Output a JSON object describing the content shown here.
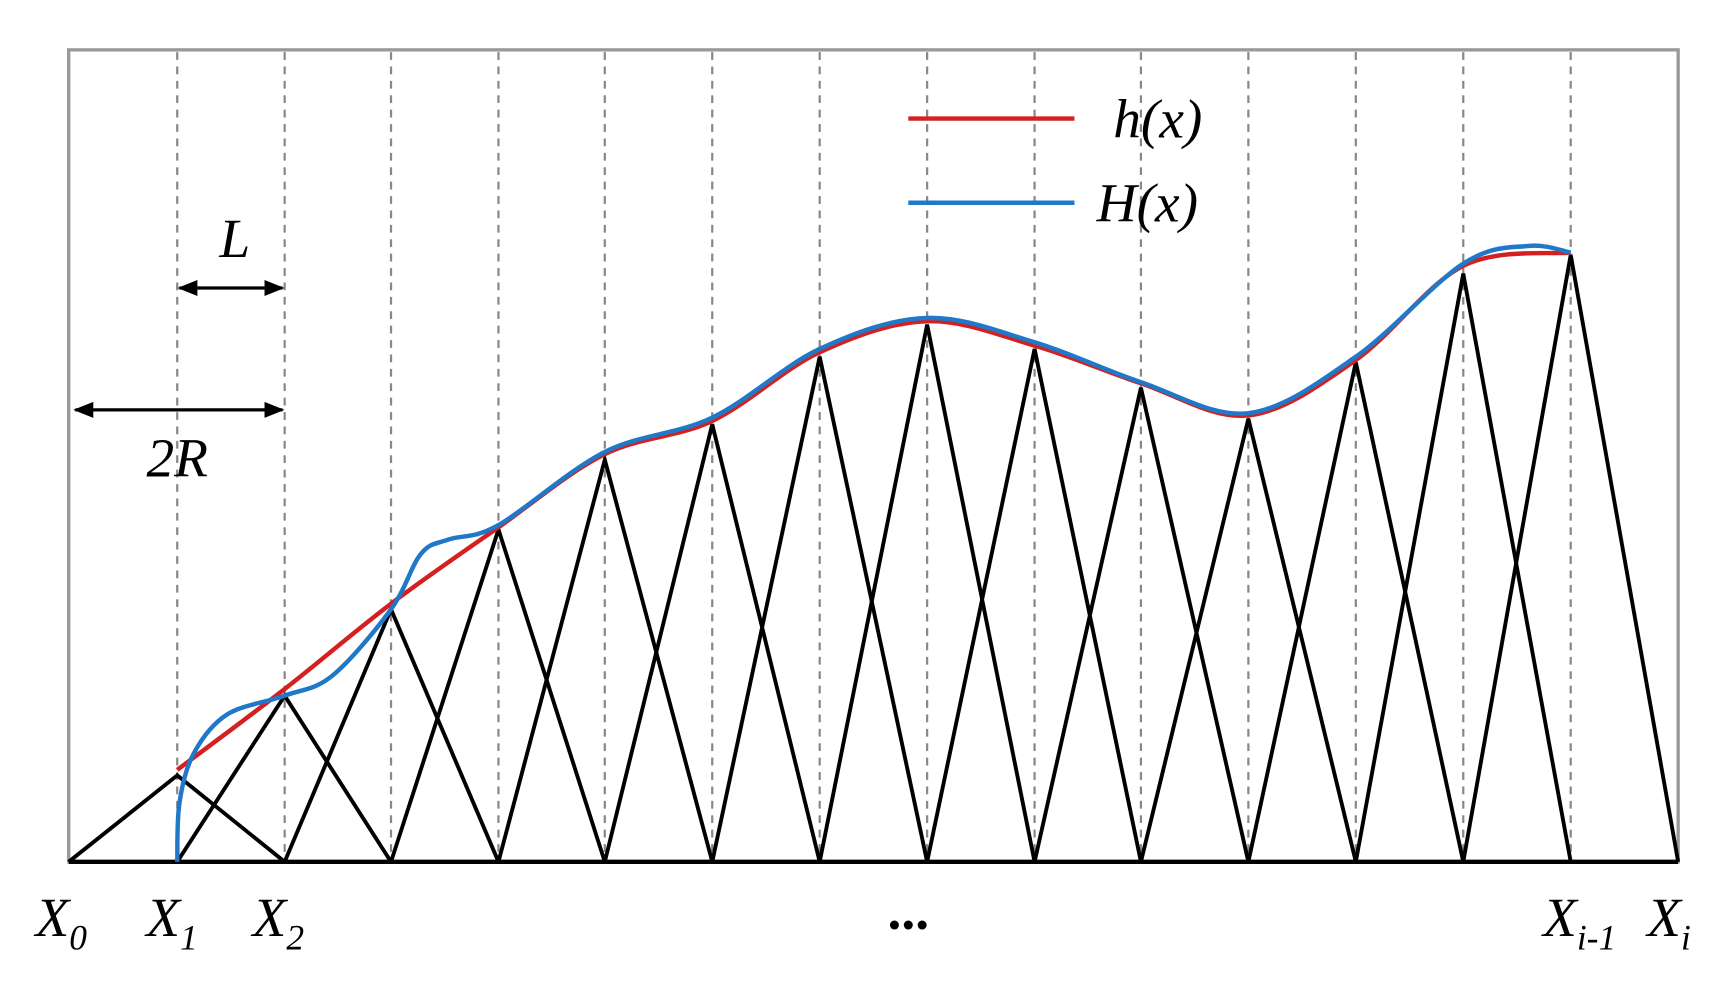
{
  "legend": [
    {
      "label": "h(x)"
    },
    {
      "label": "H(x)"
    }
  ],
  "annotations": {
    "spacing": "L",
    "width": "2R"
  },
  "nodes": [
    {
      "base": "X",
      "sub": "0"
    },
    {
      "base": "X",
      "sub": "1"
    },
    {
      "base": "X",
      "sub": "2"
    },
    {
      "base": "X",
      "sub": "i-1"
    },
    {
      "base": "X",
      "sub": "i"
    }
  ],
  "ellipsis": "..."
}
